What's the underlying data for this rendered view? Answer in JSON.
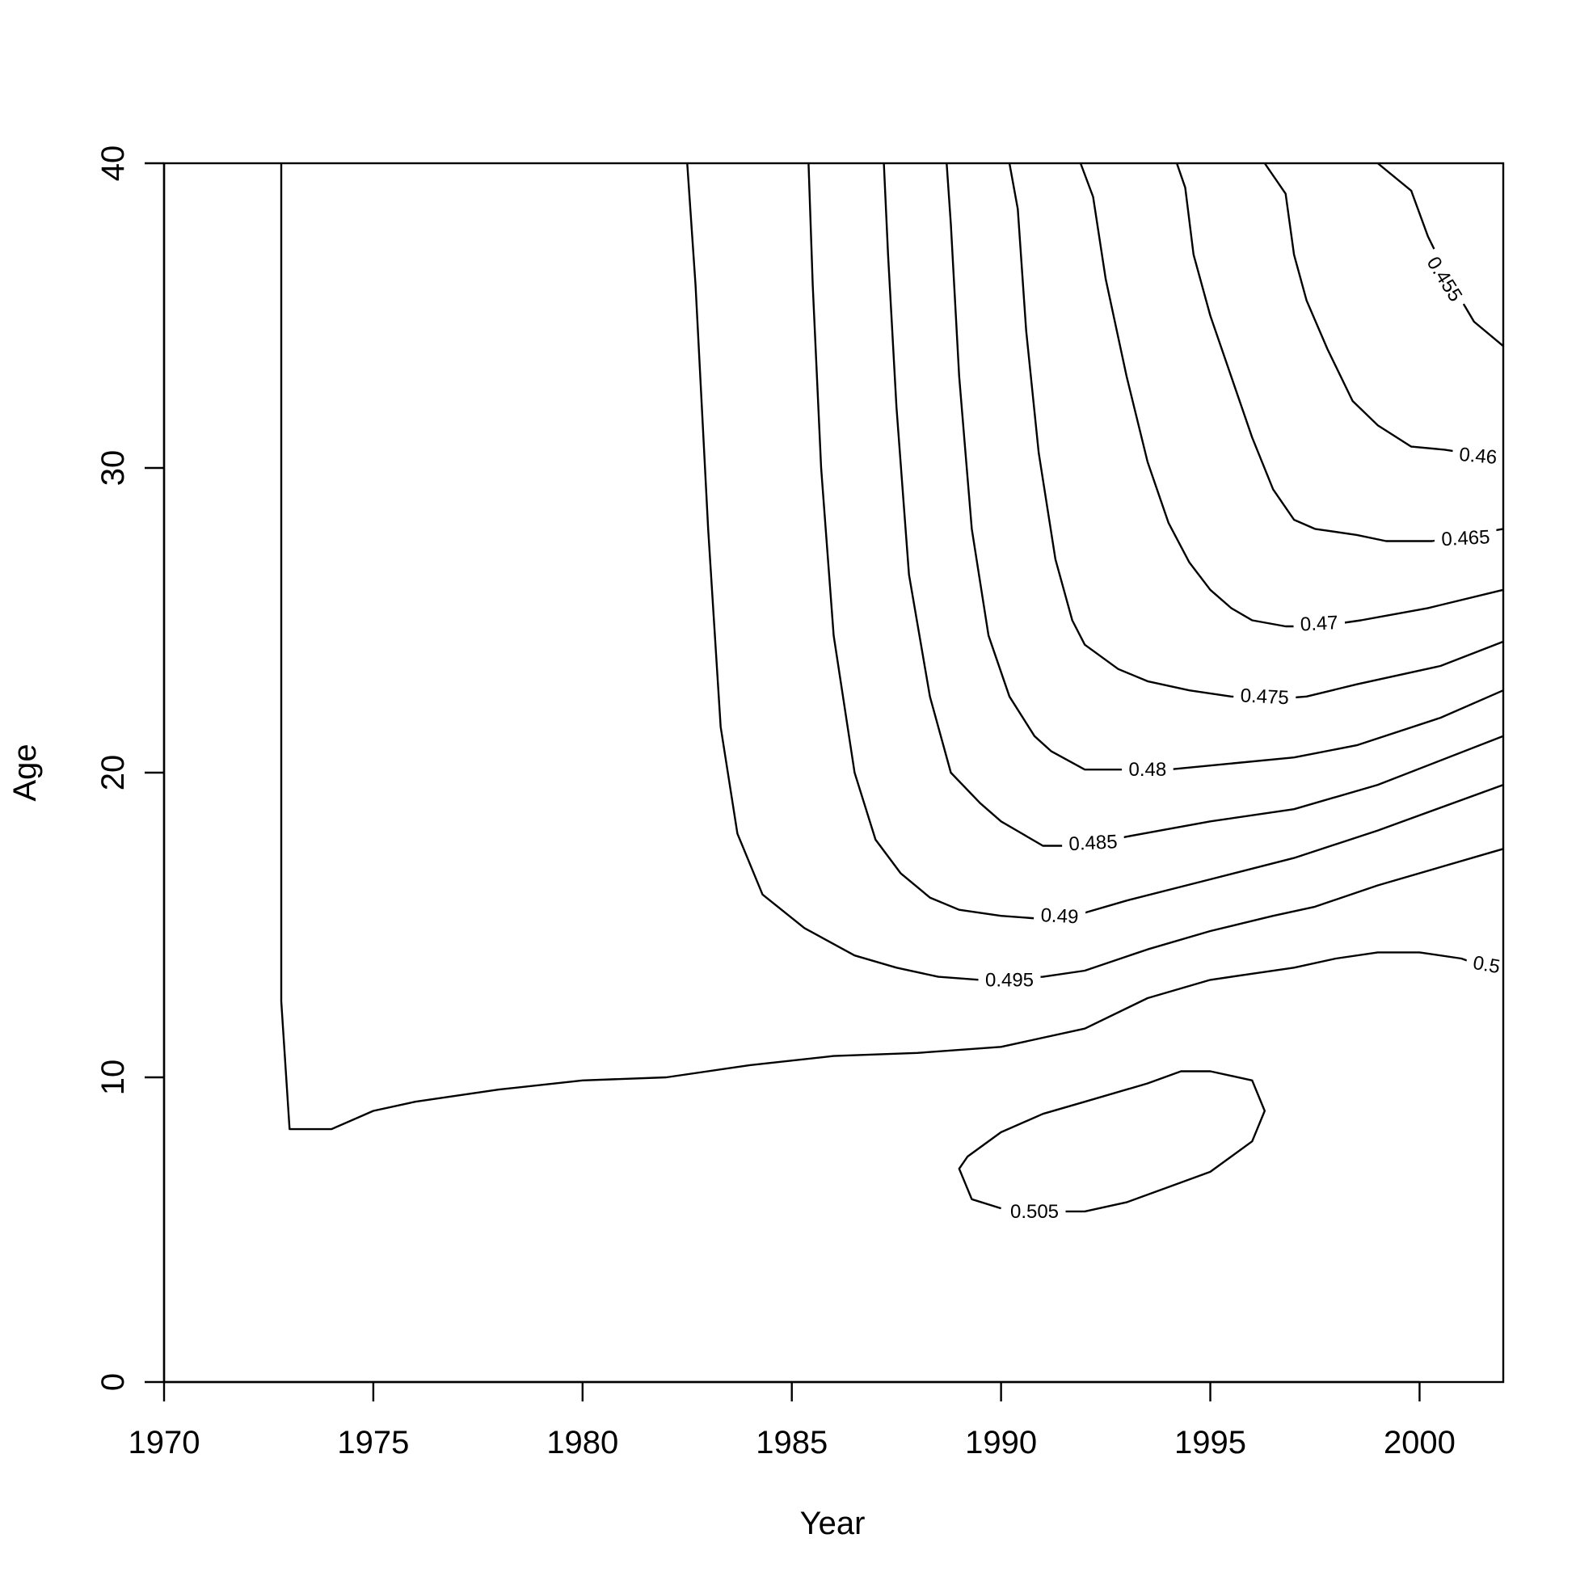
{
  "chart_data": {
    "type": "contour",
    "title": "",
    "xlabel": "Year",
    "ylabel": "Age",
    "xlim": [
      1970,
      2002
    ],
    "ylim": [
      0,
      40
    ],
    "x_ticks": [
      1970,
      1975,
      1980,
      1985,
      1990,
      1995,
      2000
    ],
    "y_ticks": [
      0,
      10,
      20,
      30,
      40
    ],
    "grid": false,
    "legend": "none",
    "contours": [
      {
        "level": "0.455",
        "points": [
          [
            1999.0,
            40.0
          ],
          [
            1999.8,
            39.1
          ],
          [
            2000.2,
            37.6
          ],
          [
            2000.7,
            36.2
          ],
          [
            2001.3,
            34.8
          ],
          [
            2002.0,
            34.0
          ]
        ]
      },
      {
        "level": "0.46",
        "points": [
          [
            1996.3,
            40.0
          ],
          [
            1996.8,
            39.0
          ],
          [
            1997.0,
            37.0
          ],
          [
            1997.3,
            35.5
          ],
          [
            1997.8,
            33.9
          ],
          [
            1998.4,
            32.2
          ],
          [
            1999.0,
            31.4
          ],
          [
            1999.8,
            30.7
          ],
          [
            2000.6,
            30.6
          ],
          [
            2002.0,
            30.3
          ]
        ]
      },
      {
        "level": "0.465",
        "points": [
          [
            1994.2,
            40.0
          ],
          [
            1994.4,
            39.2
          ],
          [
            1994.6,
            37.0
          ],
          [
            1995.0,
            35.0
          ],
          [
            1995.5,
            33.0
          ],
          [
            1996.0,
            31.0
          ],
          [
            1996.5,
            29.3
          ],
          [
            1997.0,
            28.3
          ],
          [
            1997.5,
            28.0
          ],
          [
            1998.5,
            27.8
          ],
          [
            1999.2,
            27.6
          ],
          [
            2000.3,
            27.6
          ],
          [
            2002.0,
            28.0
          ]
        ]
      },
      {
        "level": "0.47",
        "points": [
          [
            1991.9,
            40.0
          ],
          [
            1992.2,
            38.9
          ],
          [
            1992.5,
            36.2
          ],
          [
            1993.0,
            33.0
          ],
          [
            1993.5,
            30.2
          ],
          [
            1994.0,
            28.2
          ],
          [
            1994.5,
            26.9
          ],
          [
            1995.0,
            26.0
          ],
          [
            1995.5,
            25.4
          ],
          [
            1996.0,
            25.0
          ],
          [
            1996.8,
            24.8
          ],
          [
            1997.6,
            24.8
          ],
          [
            1998.6,
            25.0
          ],
          [
            2000.2,
            25.4
          ],
          [
            2002.0,
            26.0
          ]
        ]
      },
      {
        "level": "0.475",
        "points": [
          [
            1990.2,
            40.0
          ],
          [
            1990.4,
            38.5
          ],
          [
            1990.6,
            34.5
          ],
          [
            1990.9,
            30.5
          ],
          [
            1991.3,
            27.0
          ],
          [
            1991.7,
            25.0
          ],
          [
            1992.0,
            24.2
          ],
          [
            1992.8,
            23.4
          ],
          [
            1993.5,
            23.0
          ],
          [
            1994.5,
            22.7
          ],
          [
            1995.5,
            22.5
          ],
          [
            1996.4,
            22.4
          ],
          [
            1997.3,
            22.5
          ],
          [
            1998.5,
            22.9
          ],
          [
            2000.5,
            23.5
          ],
          [
            2002.0,
            24.3
          ]
        ]
      },
      {
        "level": "0.48",
        "points": [
          [
            1988.7,
            40.0
          ],
          [
            1988.8,
            38.0
          ],
          [
            1989.0,
            33.0
          ],
          [
            1989.3,
            28.0
          ],
          [
            1989.7,
            24.5
          ],
          [
            1990.2,
            22.5
          ],
          [
            1990.8,
            21.2
          ],
          [
            1991.2,
            20.7
          ],
          [
            1992.0,
            20.1
          ],
          [
            1993.0,
            20.1
          ],
          [
            1994.0,
            20.1
          ],
          [
            1995.5,
            20.3
          ],
          [
            1997.0,
            20.5
          ],
          [
            1998.5,
            20.9
          ],
          [
            2000.5,
            21.8
          ],
          [
            2002.0,
            22.7
          ]
        ]
      },
      {
        "level": "0.485",
        "points": [
          [
            1987.2,
            40.0
          ],
          [
            1987.3,
            37.0
          ],
          [
            1987.5,
            32.0
          ],
          [
            1987.8,
            26.5
          ],
          [
            1988.3,
            22.5
          ],
          [
            1988.8,
            20.0
          ],
          [
            1989.5,
            19.0
          ],
          [
            1990.0,
            18.4
          ],
          [
            1990.5,
            18.0
          ],
          [
            1991.0,
            17.6
          ],
          [
            1992.0,
            17.6
          ],
          [
            1993.0,
            17.9
          ],
          [
            1995.0,
            18.4
          ],
          [
            1997.0,
            18.8
          ],
          [
            1999.0,
            19.6
          ],
          [
            2002.0,
            21.2
          ]
        ]
      },
      {
        "level": "0.49",
        "points": [
          [
            1985.4,
            40.0
          ],
          [
            1985.5,
            36.0
          ],
          [
            1985.7,
            30.0
          ],
          [
            1986.0,
            24.5
          ],
          [
            1986.5,
            20.0
          ],
          [
            1987.0,
            17.8
          ],
          [
            1987.6,
            16.7
          ],
          [
            1988.3,
            15.9
          ],
          [
            1989.0,
            15.5
          ],
          [
            1990.0,
            15.3
          ],
          [
            1991.0,
            15.2
          ],
          [
            1992.0,
            15.4
          ],
          [
            1993.0,
            15.8
          ],
          [
            1995.0,
            16.5
          ],
          [
            1997.0,
            17.2
          ],
          [
            1999.0,
            18.1
          ],
          [
            2002.0,
            19.6
          ]
        ]
      },
      {
        "level": "0.495",
        "points": [
          [
            1982.5,
            40.0
          ],
          [
            1982.7,
            36.0
          ],
          [
            1983.0,
            28.0
          ],
          [
            1983.3,
            21.5
          ],
          [
            1983.7,
            18.0
          ],
          [
            1984.3,
            16.0
          ],
          [
            1985.3,
            14.9
          ],
          [
            1986.5,
            14.0
          ],
          [
            1987.5,
            13.6
          ],
          [
            1988.5,
            13.3
          ],
          [
            1989.5,
            13.2
          ],
          [
            1991.0,
            13.3
          ],
          [
            1992.0,
            13.5
          ],
          [
            1993.5,
            14.2
          ],
          [
            1995.0,
            14.8
          ],
          [
            1996.5,
            15.3
          ],
          [
            1997.5,
            15.6
          ],
          [
            1999.0,
            16.3
          ],
          [
            2000.5,
            16.9
          ],
          [
            2001.5,
            17.3
          ],
          [
            2002.0,
            17.5
          ]
        ]
      },
      {
        "level": "0.5",
        "points": [
          [
            1972.8,
            40.0
          ],
          [
            1972.8,
            30.0
          ],
          [
            1972.8,
            20.0
          ],
          [
            1972.8,
            12.5
          ],
          [
            1973.0,
            8.3
          ],
          [
            1974.0,
            8.3
          ],
          [
            1975.0,
            8.9
          ],
          [
            1976.0,
            9.2
          ],
          [
            1978.0,
            9.6
          ],
          [
            1980.0,
            9.9
          ],
          [
            1982.0,
            10.0
          ],
          [
            1984.0,
            10.4
          ],
          [
            1986.0,
            10.7
          ],
          [
            1988.0,
            10.8
          ],
          [
            1990.0,
            11.0
          ],
          [
            1992.0,
            11.6
          ],
          [
            1993.5,
            12.6
          ],
          [
            1995.0,
            13.2
          ],
          [
            1996.0,
            13.4
          ],
          [
            1997.0,
            13.6
          ],
          [
            1998.0,
            13.9
          ],
          [
            1999.0,
            14.1
          ],
          [
            2000.0,
            14.1
          ],
          [
            2001.0,
            13.9
          ],
          [
            2001.2,
            13.8
          ]
        ]
      },
      {
        "level": "0.505",
        "points": [
          [
            1990.4,
            5.7
          ],
          [
            1991.0,
            5.6
          ],
          [
            1992.0,
            5.6
          ],
          [
            1993.0,
            5.9
          ],
          [
            1994.0,
            6.4
          ],
          [
            1995.0,
            6.9
          ],
          [
            1996.0,
            7.9
          ],
          [
            1996.3,
            8.9
          ],
          [
            1996.0,
            9.9
          ],
          [
            1995.0,
            10.2
          ],
          [
            1994.3,
            10.2
          ],
          [
            1993.5,
            9.8
          ],
          [
            1992.0,
            9.2
          ],
          [
            1991.0,
            8.8
          ],
          [
            1990.0,
            8.2
          ],
          [
            1989.2,
            7.4
          ],
          [
            1989.0,
            7.0
          ],
          [
            1989.3,
            6.0
          ],
          [
            1990.0,
            5.7
          ]
        ]
      }
    ],
    "contour_labels": [
      {
        "text": "0.455",
        "x": 2000.6,
        "y": 36.2,
        "angle": 58
      },
      {
        "text": "0.46",
        "x": 2001.4,
        "y": 30.4,
        "angle": 5
      },
      {
        "text": "0.465",
        "x": 2001.1,
        "y": 27.7,
        "angle": -3
      },
      {
        "text": "0.47",
        "x": 1997.6,
        "y": 24.9,
        "angle": -3
      },
      {
        "text": "0.475",
        "x": 1996.3,
        "y": 22.5,
        "angle": 3
      },
      {
        "text": "0.48",
        "x": 1993.5,
        "y": 20.1,
        "angle": 0
      },
      {
        "text": "0.485",
        "x": 1992.2,
        "y": 17.7,
        "angle": -3
      },
      {
        "text": "0.49",
        "x": 1991.4,
        "y": 15.3,
        "angle": 3
      },
      {
        "text": "0.495",
        "x": 1990.2,
        "y": 13.2,
        "angle": 0
      },
      {
        "text": "0.5",
        "x": 2001.6,
        "y": 13.7,
        "angle": 10
      },
      {
        "text": "0.505",
        "x": 1990.8,
        "y": 5.6,
        "angle": 0
      }
    ]
  }
}
